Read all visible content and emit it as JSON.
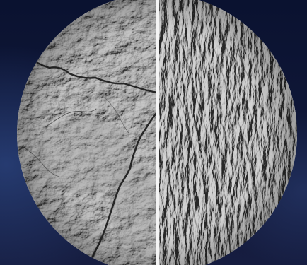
{
  "image": {
    "subject": "terrain-relief-disc",
    "colors": {
      "background_top": "#0a1230",
      "background_bottom": "#161d40",
      "background_glow": "#2f4a88",
      "terrain_light": "#b9b9b9",
      "terrain_mid": "#8f8f8f",
      "terrain_dark": "#5a5a5a",
      "river": "#262626",
      "divider": "#f4f4f4"
    }
  }
}
